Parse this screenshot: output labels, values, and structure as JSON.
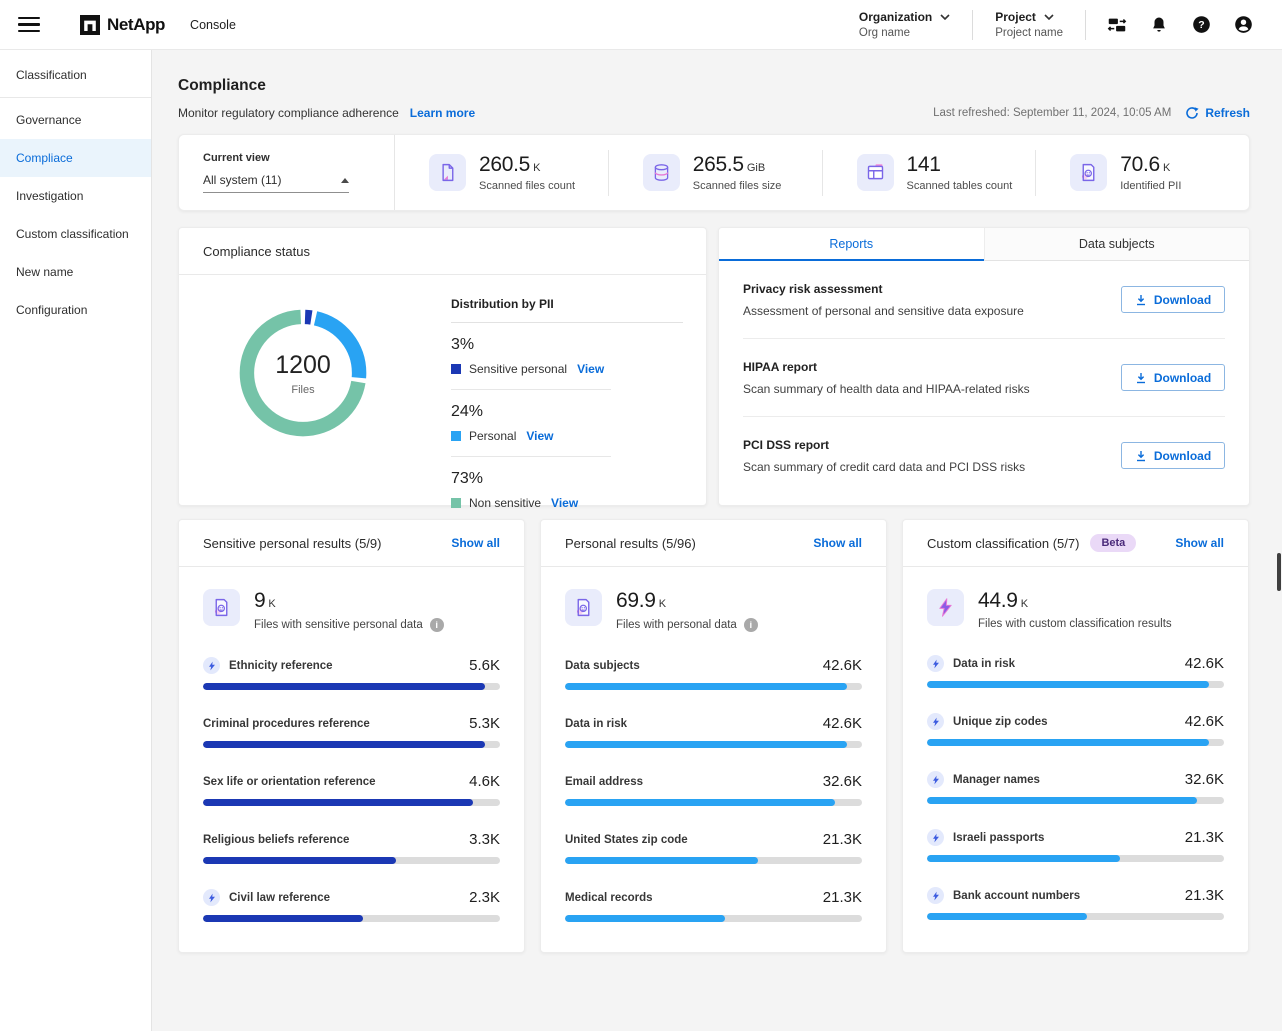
{
  "topbar": {
    "brand": "NetApp",
    "product": "Console",
    "org_label": "Organization",
    "org_value": "Org name",
    "project_label": "Project",
    "project_value": "Project name"
  },
  "sidebar": {
    "items": [
      {
        "label": "Classification",
        "active": false
      },
      {
        "label": "Governance",
        "active": false
      },
      {
        "label": "Compliace",
        "active": true
      },
      {
        "label": "Investigation",
        "active": false
      },
      {
        "label": "Custom classification",
        "active": false
      },
      {
        "label": "New name",
        "active": false
      },
      {
        "label": "Configuration",
        "active": false
      }
    ]
  },
  "page": {
    "title": "Compliance",
    "subtitle": "Monitor regulatory compliance adherence",
    "learn_more": "Learn more",
    "last_refreshed": "Last refreshed: September 11, 2024, 10:05 AM",
    "refresh": "Refresh"
  },
  "stats": {
    "current_view_label": "Current view",
    "current_view_value": "All system (11)",
    "items": [
      {
        "icon": "file-icon",
        "value": "260.5",
        "unit": "K",
        "label": "Scanned files count"
      },
      {
        "icon": "database-icon",
        "value": "265.5",
        "unit": "GiB",
        "label": "Scanned files size"
      },
      {
        "icon": "table-icon",
        "value": "141",
        "unit": "",
        "label": "Scanned tables count"
      },
      {
        "icon": "pii-icon",
        "value": "70.6",
        "unit": "K",
        "label": "Identified PII"
      }
    ]
  },
  "compliance_status": {
    "title": "Compliance status",
    "list_title": "Distribution by PII"
  },
  "reports": {
    "tabs": [
      "Reports",
      "Data subjects"
    ],
    "active_tab": "Reports",
    "items": [
      {
        "title": "Privacy risk assessment",
        "description": "Assessment of personal and sensitive data exposure",
        "button": "Download"
      },
      {
        "title": "HIPAA report",
        "description": "Scan summary of health data and HIPAA-related risks",
        "button": "Download"
      },
      {
        "title": "PCI DSS report",
        "description": "Scan summary of credit card data and PCI DSS risks",
        "button": "Download"
      }
    ]
  },
  "result_cards": [
    {
      "title": "Sensitive personal results (5/9)",
      "show_all": "Show all",
      "icon": "pii-icon",
      "total": "9",
      "unit": "K",
      "total_label": "Files with sensitive personal data",
      "has_info": true
    },
    {
      "title": "Personal results (5/96)",
      "show_all": "Show all",
      "icon": "pii-icon",
      "total": "69.9",
      "unit": "K",
      "total_label": "Files with personal data",
      "has_info": true
    },
    {
      "title": "Custom classification (5/7)",
      "badge": "Beta",
      "show_all": "Show all",
      "icon": "lightning-icon",
      "total": "44.9",
      "unit": "K",
      "total_label": "Files with custom classification results",
      "has_info": false
    }
  ],
  "chart_data": [
    {
      "type": "pie",
      "title": "Compliance status",
      "center_value": "1200",
      "center_label": "Files",
      "legend_position": "right",
      "segments": [
        {
          "label": "Sensitive personal",
          "pct": 3,
          "color": "#1b38b4",
          "view": "View"
        },
        {
          "label": "Personal",
          "pct": 24,
          "color": "#29a3f3",
          "view": "View"
        },
        {
          "label": "Non sensitive",
          "pct": 73,
          "color": "#75c3a8",
          "view": "View"
        }
      ]
    },
    {
      "type": "bar",
      "title": "Sensitive personal results (5/9)",
      "color": "#1b38b4",
      "rows": [
        {
          "label": "Ethnicity reference",
          "value": "5.6K",
          "fill_pct": 95,
          "bolt": true
        },
        {
          "label": "Criminal procedures reference",
          "value": "5.3K",
          "fill_pct": 95,
          "bolt": false
        },
        {
          "label": "Sex life or orientation reference",
          "value": "4.6K",
          "fill_pct": 91,
          "bolt": false
        },
        {
          "label": "Religious beliefs reference",
          "value": "3.3K",
          "fill_pct": 65,
          "bolt": false
        },
        {
          "label": "Civil law reference",
          "value": "2.3K",
          "fill_pct": 54,
          "bolt": true
        }
      ]
    },
    {
      "type": "bar",
      "title": "Personal results (5/96)",
      "color": "#29a3f3",
      "rows": [
        {
          "label": "Data subjects",
          "value": "42.6K",
          "fill_pct": 95,
          "bolt": false
        },
        {
          "label": "Data in risk",
          "value": "42.6K",
          "fill_pct": 95,
          "bolt": false
        },
        {
          "label": "Email address",
          "value": "32.6K",
          "fill_pct": 91,
          "bolt": false
        },
        {
          "label": "United States zip code",
          "value": "21.3K",
          "fill_pct": 65,
          "bolt": false
        },
        {
          "label": "Medical records",
          "value": "21.3K",
          "fill_pct": 54,
          "bolt": false
        }
      ]
    },
    {
      "type": "bar",
      "title": "Custom classification (5/7)",
      "color": "#29a3f3",
      "rows": [
        {
          "label": "Data in risk",
          "value": "42.6K",
          "fill_pct": 95,
          "bolt": true
        },
        {
          "label": "Unique zip codes",
          "value": "42.6K",
          "fill_pct": 95,
          "bolt": true
        },
        {
          "label": "Manager names",
          "value": "32.6K",
          "fill_pct": 91,
          "bolt": true
        },
        {
          "label": "Israeli passports",
          "value": "21.3K",
          "fill_pct": 65,
          "bolt": true
        },
        {
          "label": "Bank account numbers",
          "value": "21.3K",
          "fill_pct": 54,
          "bolt": true
        }
      ]
    }
  ]
}
